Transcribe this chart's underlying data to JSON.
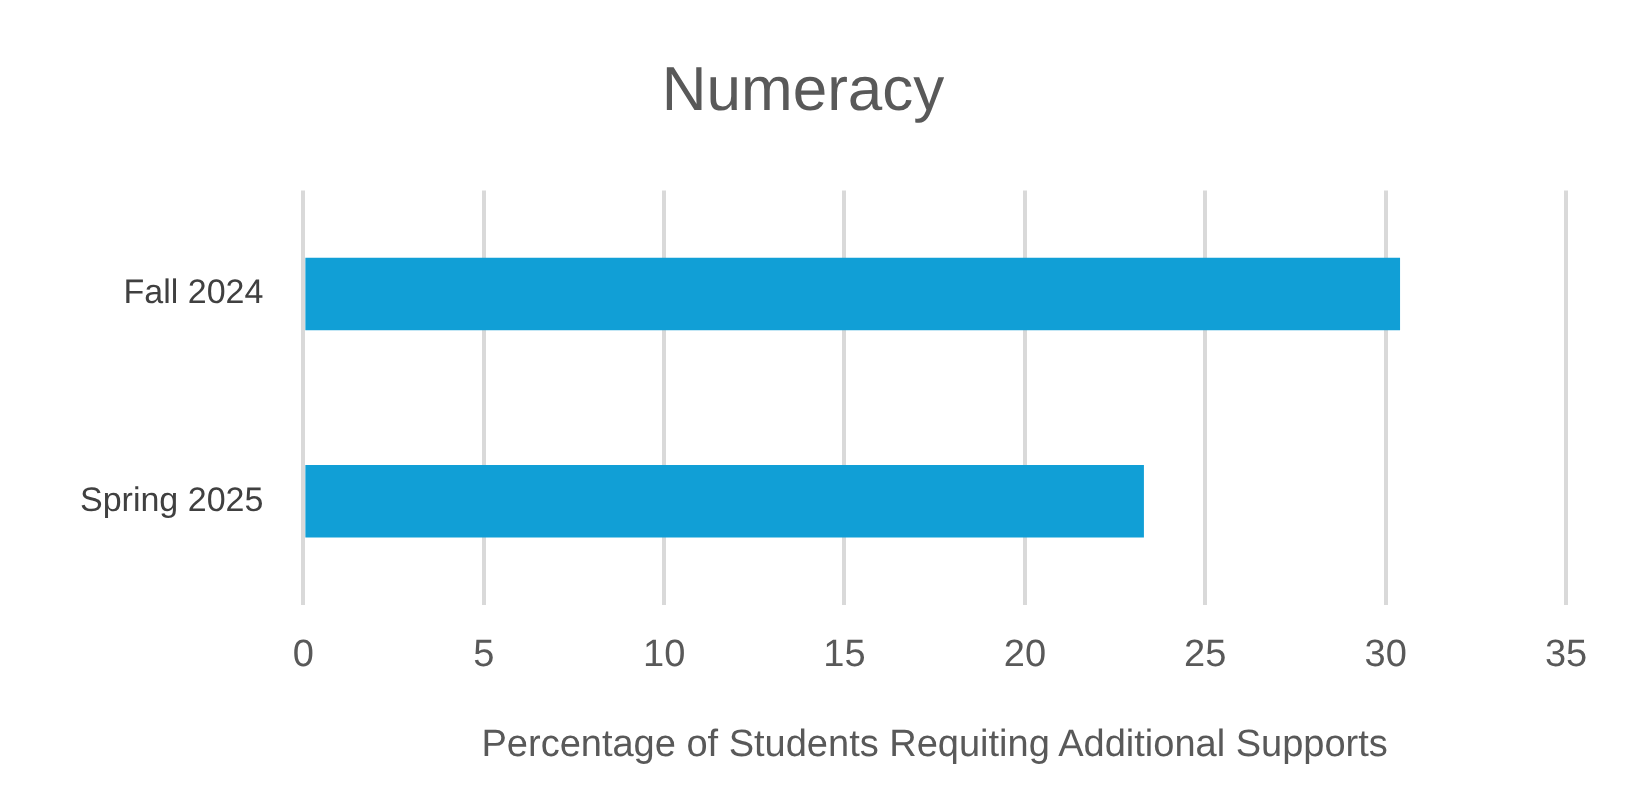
{
  "chart_data": {
    "type": "bar",
    "orientation": "horizontal",
    "title": "Numeracy",
    "xlabel": "Percentage of Students Requiting Additional Supports",
    "categories": [
      "Fall 2024",
      "Spring 2025"
    ],
    "values": [
      30.4,
      23.3
    ],
    "color": "#119fd6",
    "xlim": [
      0,
      35
    ],
    "xticks": [
      0,
      5,
      10,
      15,
      20,
      25,
      30,
      35
    ],
    "grid": "x"
  }
}
